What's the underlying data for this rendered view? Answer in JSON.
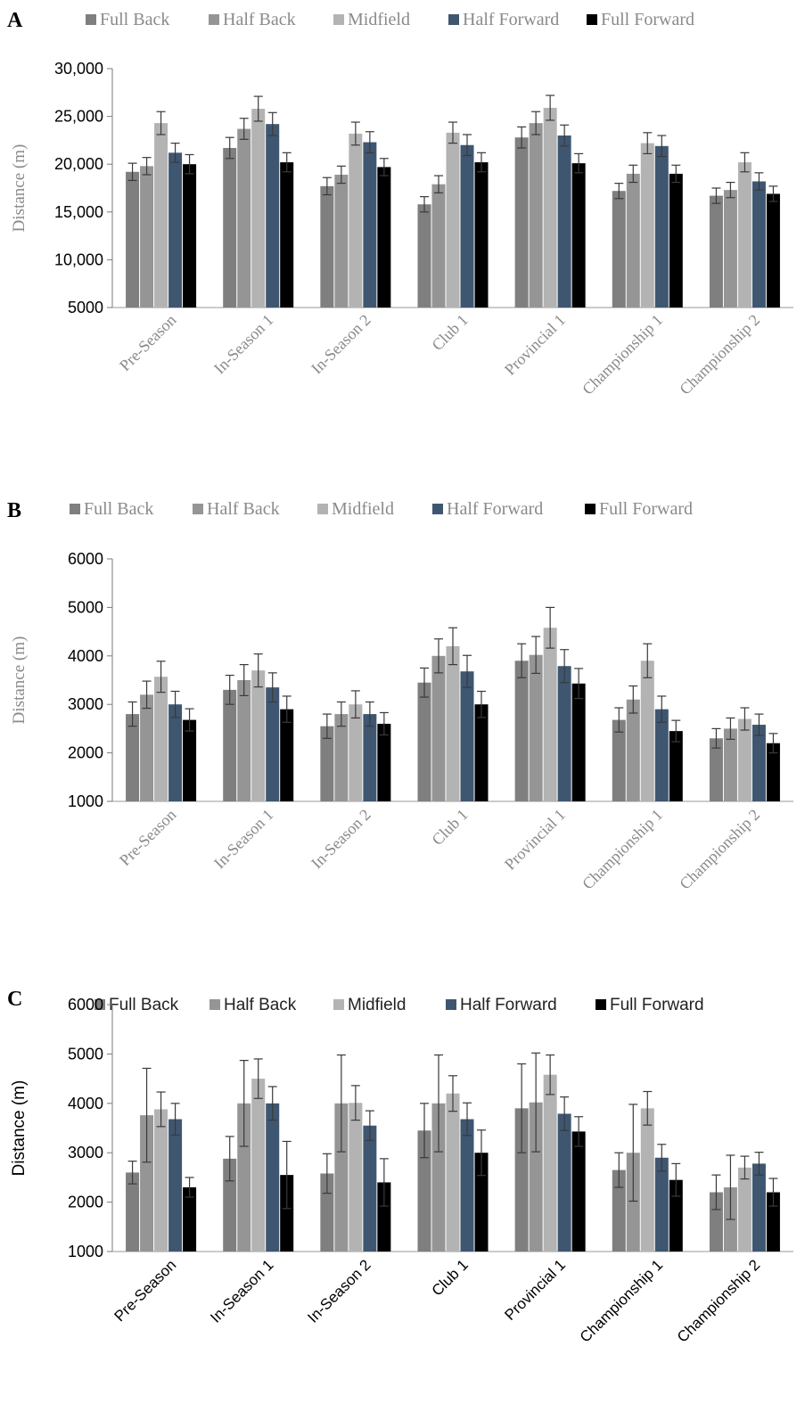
{
  "chart_data": [
    {
      "panel": "A",
      "type": "bar",
      "categories": [
        "Pre-Season",
        "In-Season 1",
        "In-Season 2",
        "Club 1",
        "Provincial 1",
        "Championship 1",
        "Championship 2"
      ],
      "series": [
        {
          "name": "Full Back",
          "color": "#7f7f7f",
          "values": [
            19200,
            21700,
            17700,
            15800,
            22800,
            17200,
            16700
          ],
          "errors": [
            900,
            1100,
            900,
            800,
            1100,
            800,
            800
          ]
        },
        {
          "name": "Half Back",
          "color": "#959595",
          "values": [
            19800,
            23700,
            18900,
            17900,
            24300,
            19000,
            17300
          ],
          "errors": [
            900,
            1100,
            900,
            900,
            1200,
            900,
            800
          ]
        },
        {
          "name": "Midfield",
          "color": "#b3b3b3",
          "values": [
            24300,
            25800,
            23200,
            23300,
            25900,
            22200,
            20200
          ],
          "errors": [
            1200,
            1300,
            1200,
            1100,
            1300,
            1100,
            1000
          ]
        },
        {
          "name": "Half Forward",
          "color": "#3f5670",
          "values": [
            21200,
            24200,
            22300,
            22000,
            23000,
            21900,
            18200
          ],
          "errors": [
            1000,
            1200,
            1100,
            1100,
            1100,
            1100,
            900
          ]
        },
        {
          "name": "Full Forward",
          "color": "#000000",
          "values": [
            20000,
            20200,
            19700,
            20200,
            20100,
            19000,
            16900
          ],
          "errors": [
            1000,
            1000,
            900,
            1000,
            1000,
            900,
            800
          ]
        }
      ],
      "ylabel": "Distance (m)",
      "ylim": [
        5000,
        30000
      ],
      "yticks": [
        "5000",
        "10,000",
        "15,000",
        "20,000",
        "25,000",
        "30,000"
      ],
      "legend": "top",
      "grid": false
    },
    {
      "panel": "B",
      "type": "bar",
      "categories": [
        "Pre-Season",
        "In-Season 1",
        "In-Season 2",
        "Club 1",
        "Provincial 1",
        "Championship 1",
        "Championship 2"
      ],
      "series": [
        {
          "name": "Full Back",
          "color": "#7f7f7f",
          "values": [
            2800,
            3300,
            2550,
            3450,
            3900,
            2680,
            2300
          ],
          "errors": [
            250,
            300,
            250,
            300,
            350,
            250,
            200
          ]
        },
        {
          "name": "Half Back",
          "color": "#959595",
          "values": [
            3200,
            3500,
            2800,
            4000,
            4020,
            3100,
            2500
          ],
          "errors": [
            280,
            320,
            250,
            350,
            380,
            280,
            220
          ]
        },
        {
          "name": "Midfield",
          "color": "#b3b3b3",
          "values": [
            3570,
            3700,
            3000,
            4200,
            4580,
            3900,
            2700
          ],
          "errors": [
            320,
            340,
            280,
            380,
            420,
            350,
            230
          ]
        },
        {
          "name": "Half Forward",
          "color": "#3f5670",
          "values": [
            3000,
            3350,
            2800,
            3680,
            3790,
            2900,
            2580
          ],
          "errors": [
            270,
            300,
            250,
            330,
            340,
            270,
            220
          ]
        },
        {
          "name": "Full Forward",
          "color": "#000000",
          "values": [
            2680,
            2900,
            2600,
            3000,
            3430,
            2450,
            2200
          ],
          "errors": [
            230,
            270,
            230,
            270,
            310,
            220,
            200
          ]
        }
      ],
      "ylabel": "Distance (m)",
      "ylim": [
        1000,
        6000
      ],
      "yticks": [
        "1000",
        "2000",
        "3000",
        "4000",
        "5000",
        "6000"
      ],
      "legend": "top",
      "grid": false
    },
    {
      "panel": "C",
      "type": "bar",
      "categories": [
        "Pre-Season",
        "In-Season 1",
        "In-Season 2",
        "Club 1",
        "Provincial 1",
        "Championship 1",
        "Championship 2"
      ],
      "series": [
        {
          "name": "Full Back",
          "color": "#7f7f7f",
          "values": [
            2600,
            2880,
            2580,
            3450,
            3900,
            2650,
            2200
          ],
          "errors": [
            230,
            450,
            400,
            550,
            900,
            350,
            350
          ]
        },
        {
          "name": "Half Back",
          "color": "#959595",
          "values": [
            3760,
            4000,
            4000,
            4000,
            4020,
            3000,
            2300
          ],
          "errors": [
            950,
            870,
            980,
            980,
            1000,
            980,
            650
          ]
        },
        {
          "name": "Midfield",
          "color": "#b3b3b3",
          "values": [
            3880,
            4500,
            4010,
            4200,
            4580,
            3900,
            2700
          ],
          "errors": [
            350,
            400,
            350,
            360,
            400,
            340,
            230
          ]
        },
        {
          "name": "Half Forward",
          "color": "#3f5670",
          "values": [
            3680,
            4000,
            3550,
            3680,
            3790,
            2900,
            2780
          ],
          "errors": [
            320,
            340,
            300,
            330,
            340,
            270,
            230
          ]
        },
        {
          "name": "Full Forward",
          "color": "#000000",
          "values": [
            2300,
            2550,
            2400,
            3000,
            3430,
            2450,
            2200
          ],
          "errors": [
            200,
            680,
            480,
            460,
            300,
            330,
            280
          ]
        }
      ],
      "ylabel": "Distance (m)",
      "ylim": [
        1000,
        6000
      ],
      "yticks": [
        "1000",
        "2000",
        "3000",
        "4000",
        "5000",
        "6000"
      ],
      "legend": "top",
      "grid": false
    }
  ]
}
